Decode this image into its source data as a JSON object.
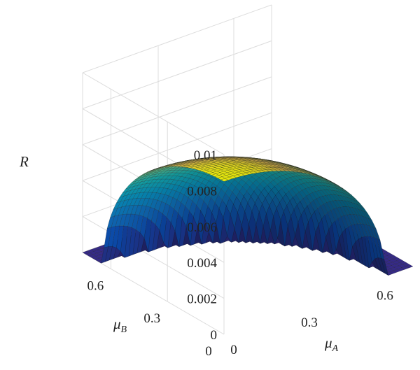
{
  "chart_data": {
    "type": "surface3d",
    "zlabel": "R",
    "xlabel": {
      "base": "μ",
      "sub": "A"
    },
    "ylabel": {
      "base": "μ",
      "sub": "B"
    },
    "x_ticks": [
      "0",
      "0.3",
      "0.6"
    ],
    "y_ticks": [
      "0",
      "0.3",
      "0.6"
    ],
    "z_ticks": [
      "0",
      "0.002",
      "0.004",
      "0.006",
      "0.008",
      "0.01"
    ],
    "xlim": [
      0,
      0.75
    ],
    "ylim": [
      0,
      0.75
    ],
    "zlim": [
      0,
      0.01
    ],
    "grid": true,
    "colormap": "parula",
    "surface": {
      "support_radius": 0.64,
      "peak": 0.0085,
      "peak_at": [
        0,
        0
      ],
      "floor_value": 0,
      "samples": [
        {
          "muA": 0.0,
          "muB": 0.0,
          "R": 0.0085
        },
        {
          "muA": 0.3,
          "muB": 0.0,
          "R": 0.0067
        },
        {
          "muA": 0.5,
          "muB": 0.0,
          "R": 0.0033
        },
        {
          "muA": 0.0,
          "muB": 0.3,
          "R": 0.0067
        },
        {
          "muA": 0.3,
          "muB": 0.3,
          "R": 0.0046
        },
        {
          "muA": 0.0,
          "muB": 0.6,
          "R": 0.001
        }
      ]
    }
  }
}
